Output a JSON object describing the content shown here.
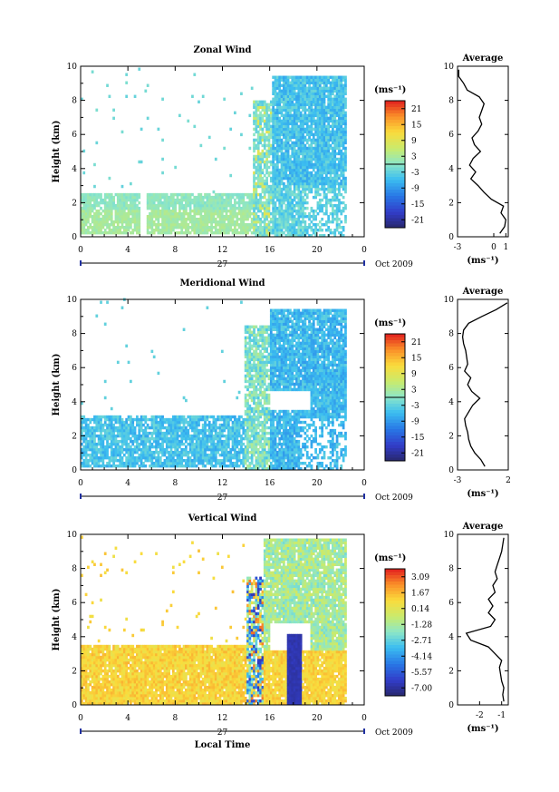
{
  "chart_data": [
    {
      "type": "heatmap",
      "title": "Zonal Wind",
      "ylabel": "Height (km)",
      "ylim": [
        0,
        10
      ],
      "yticks": [
        "0",
        "2",
        "4",
        "6",
        "8",
        "10"
      ],
      "xticks": [
        "0",
        "4",
        "8",
        "12",
        "16",
        "20",
        "0"
      ],
      "xlim": [
        0,
        24
      ],
      "day_label": "27",
      "date_label": "Oct 2009",
      "unit": "(ms⁻¹)",
      "colorbar_ticks": [
        "21",
        "15",
        "9",
        "3",
        "-3",
        "-9",
        "-15",
        "-21"
      ],
      "colorbar_range": [
        -24,
        24
      ],
      "profile_title": "Average",
      "profile_xticks": [
        "-3",
        "0",
        "1"
      ],
      "profile_xlim": [
        -3,
        1.2
      ],
      "profile_xlabel": "(ms⁻¹)",
      "profile": {
        "height": [
          0.2,
          0.6,
          1.0,
          1.4,
          1.8,
          2.2,
          2.6,
          3.0,
          3.4,
          3.8,
          4.2,
          4.6,
          5.0,
          5.4,
          5.8,
          6.2,
          6.6,
          7.0,
          7.4,
          7.8,
          8.2,
          8.6,
          9.0,
          9.4,
          9.8
        ],
        "value": [
          0.5,
          0.9,
          1.0,
          0.6,
          0.8,
          -0.2,
          -0.8,
          -1.3,
          -1.9,
          -1.5,
          -2.0,
          -1.7,
          -1.1,
          -1.6,
          -1.8,
          -1.3,
          -1.0,
          -1.2,
          -1.0,
          -0.8,
          -1.2,
          -2.2,
          -2.5,
          -2.9,
          -2.9
        ]
      }
    },
    {
      "type": "heatmap",
      "title": "Meridional Wind",
      "ylabel": "Height (km)",
      "ylim": [
        0,
        10
      ],
      "yticks": [
        "0",
        "2",
        "4",
        "6",
        "8",
        "10"
      ],
      "xticks": [
        "0",
        "4",
        "8",
        "12",
        "16",
        "20",
        "0"
      ],
      "xlim": [
        0,
        24
      ],
      "day_label": "27",
      "date_label": "Oct 2009",
      "unit": "(ms⁻¹)",
      "colorbar_ticks": [
        "21",
        "15",
        "9",
        "3",
        "-3",
        "-9",
        "-15",
        "-21"
      ],
      "colorbar_range": [
        -24,
        24
      ],
      "profile_title": "Average",
      "profile_xticks": [
        "-3",
        "2"
      ],
      "profile_xlim": [
        -3,
        2
      ],
      "profile_xlabel": "(ms⁻¹)",
      "profile": {
        "height": [
          0.2,
          0.6,
          1.0,
          1.4,
          1.8,
          2.2,
          2.6,
          3.0,
          3.4,
          3.8,
          4.2,
          4.6,
          5.0,
          5.4,
          5.8,
          6.2,
          6.6,
          7.0,
          7.4,
          7.8,
          8.2,
          8.6,
          9.0,
          9.4,
          9.8
        ],
        "value": [
          -0.3,
          -0.7,
          -1.3,
          -1.7,
          -1.9,
          -2.0,
          -2.2,
          -2.3,
          -1.9,
          -1.5,
          -0.8,
          -1.6,
          -2.0,
          -1.7,
          -2.3,
          -2.0,
          -2.1,
          -2.2,
          -2.4,
          -2.5,
          -2.4,
          -1.9,
          -0.6,
          0.8,
          1.9
        ]
      }
    },
    {
      "type": "heatmap",
      "title": "Vertical Wind",
      "ylabel": "Height (km)",
      "xlabel": "Local Time",
      "ylim": [
        0,
        10
      ],
      "yticks": [
        "0",
        "2",
        "4",
        "6",
        "8",
        "10"
      ],
      "xticks": [
        "0",
        "4",
        "8",
        "12",
        "16",
        "20",
        "0"
      ],
      "xlim": [
        0,
        24
      ],
      "day_label": "27",
      "date_label": "Oct 2009",
      "unit": "(ms⁻¹)",
      "colorbar_ticks": [
        "3.09",
        "1.67",
        "0.14",
        "-1.28",
        "-2.71",
        "-4.14",
        "-5.57",
        "-7.00"
      ],
      "colorbar_range": [
        -8.0,
        4.0
      ],
      "profile_title": "Average",
      "profile_xticks": [
        "-2",
        "-1"
      ],
      "profile_xlim": [
        -3,
        -0.7
      ],
      "profile_xlabel": "(ms⁻¹)",
      "profile": {
        "height": [
          0.2,
          0.6,
          1.0,
          1.4,
          1.8,
          2.2,
          2.6,
          3.0,
          3.4,
          3.8,
          4.2,
          4.6,
          5.0,
          5.4,
          5.8,
          6.2,
          6.6,
          7.0,
          7.4,
          7.8,
          8.2,
          8.6,
          9.0,
          9.4,
          9.8
        ],
        "value": [
          -0.9,
          -0.95,
          -0.9,
          -1.0,
          -1.05,
          -1.1,
          -1.0,
          -1.3,
          -1.6,
          -2.4,
          -2.6,
          -1.5,
          -1.3,
          -1.6,
          -1.4,
          -1.6,
          -1.3,
          -1.4,
          -1.2,
          -1.3,
          -1.2,
          -1.1,
          -1.0,
          -0.95,
          -0.9
        ]
      }
    }
  ]
}
